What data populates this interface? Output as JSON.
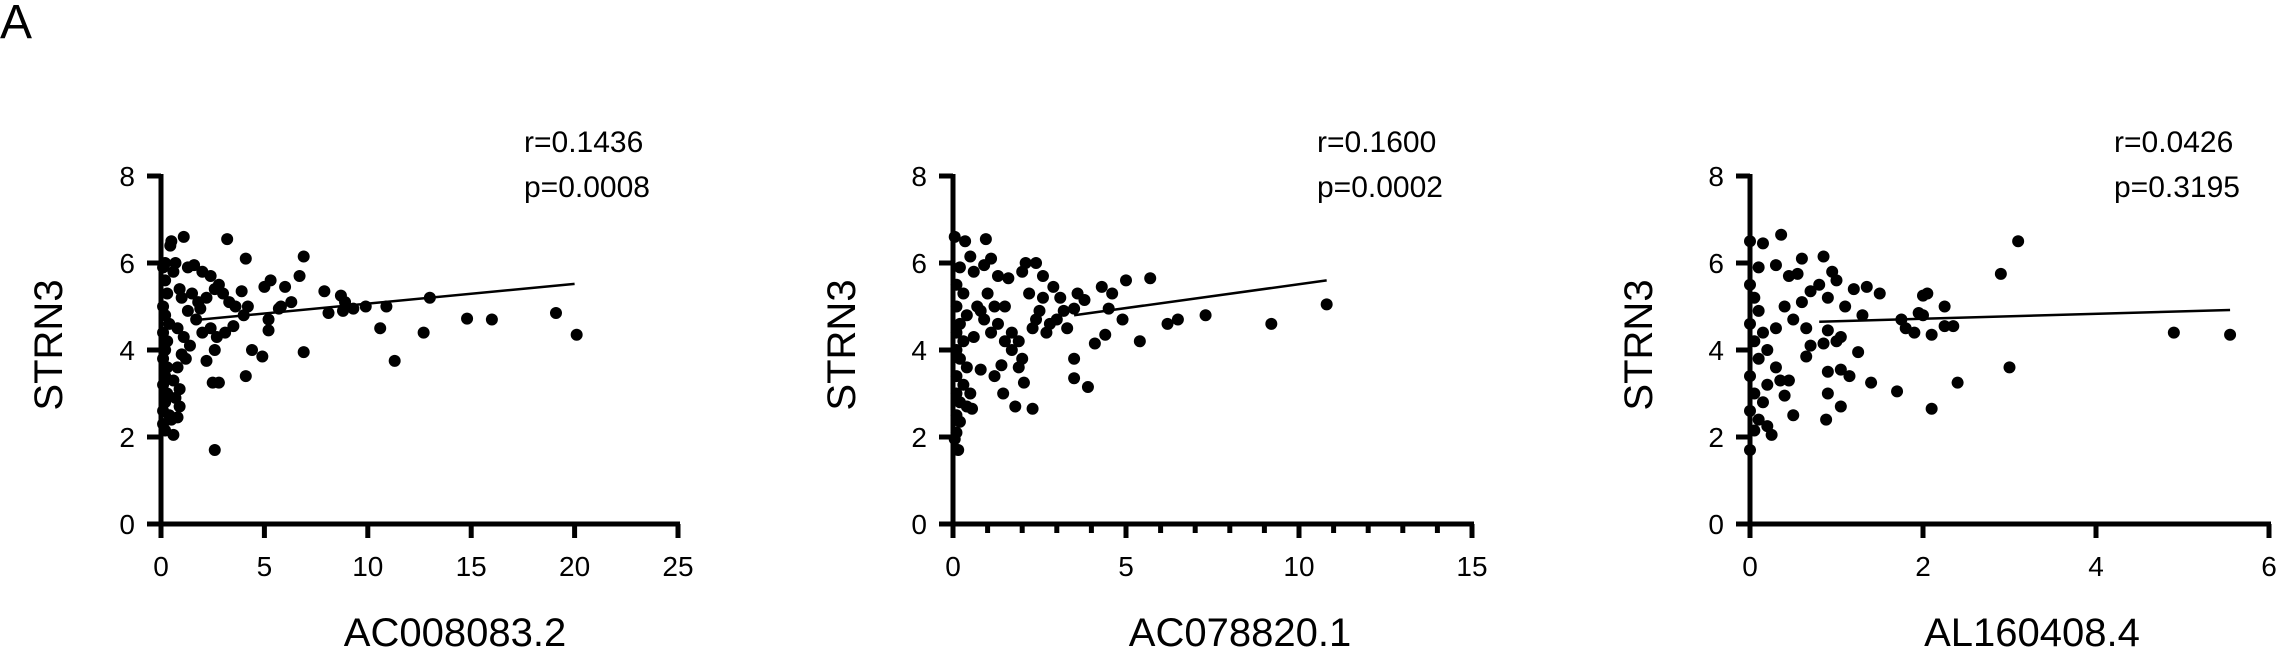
{
  "figure": {
    "panel_label": "A"
  },
  "chart_data": [
    {
      "type": "scatter",
      "title": "",
      "xlabel": "AC008083.2",
      "ylabel": "STRN3",
      "xlim": [
        0,
        25
      ],
      "ylim": [
        0,
        8
      ],
      "xticks": [
        0,
        5,
        10,
        15,
        20,
        25
      ],
      "yticks": [
        0,
        2,
        4,
        6,
        8
      ],
      "x_minor_ticks": false,
      "grid": false,
      "annotations": {
        "r": "r=0.1436",
        "p": "p=0.0008"
      },
      "regression_line": {
        "x": [
          1.5,
          20.0
        ],
        "y": [
          4.68,
          5.52
        ]
      },
      "points": [
        [
          0.1,
          5.9
        ],
        [
          0.2,
          5.6
        ],
        [
          0.3,
          5.3
        ],
        [
          0.1,
          5.0
        ],
        [
          0.2,
          4.8
        ],
        [
          0.4,
          4.6
        ],
        [
          0.1,
          4.4
        ],
        [
          0.3,
          4.2
        ],
        [
          0.2,
          4.0
        ],
        [
          0.1,
          3.8
        ],
        [
          0.3,
          3.6
        ],
        [
          0.2,
          3.4
        ],
        [
          0.1,
          3.2
        ],
        [
          0.3,
          3.0
        ],
        [
          0.2,
          2.8
        ],
        [
          0.1,
          2.6
        ],
        [
          0.4,
          2.5
        ],
        [
          0.1,
          2.3
        ],
        [
          0.2,
          2.15
        ],
        [
          0.6,
          2.05
        ],
        [
          0.5,
          2.4
        ],
        [
          0.8,
          2.45
        ],
        [
          0.9,
          2.7
        ],
        [
          0.7,
          2.9
        ],
        [
          0.6,
          3.3
        ],
        [
          0.9,
          3.1
        ],
        [
          0.8,
          3.6
        ],
        [
          1.0,
          3.9
        ],
        [
          1.2,
          3.8
        ],
        [
          1.4,
          4.1
        ],
        [
          0.5,
          6.5
        ],
        [
          0.45,
          6.4
        ],
        [
          1.1,
          6.6
        ],
        [
          0.7,
          6.0
        ],
        [
          1.3,
          5.9
        ],
        [
          1.6,
          5.95
        ],
        [
          2.0,
          5.8
        ],
        [
          2.4,
          5.7
        ],
        [
          2.8,
          5.5
        ],
        [
          0.9,
          5.4
        ],
        [
          1.5,
          5.3
        ],
        [
          1.8,
          5.1
        ],
        [
          2.2,
          5.2
        ],
        [
          2.6,
          5.4
        ],
        [
          3.0,
          5.3
        ],
        [
          3.3,
          5.1
        ],
        [
          3.6,
          5.0
        ],
        [
          3.9,
          5.35
        ],
        [
          4.2,
          5.0
        ],
        [
          4.0,
          4.8
        ],
        [
          3.5,
          4.55
        ],
        [
          3.1,
          4.4
        ],
        [
          2.7,
          4.3
        ],
        [
          2.4,
          4.5
        ],
        [
          2.0,
          4.4
        ],
        [
          1.7,
          4.7
        ],
        [
          1.3,
          4.9
        ],
        [
          1.0,
          5.2
        ],
        [
          0.8,
          4.5
        ],
        [
          1.1,
          4.3
        ],
        [
          3.2,
          6.55
        ],
        [
          4.1,
          6.1
        ],
        [
          2.2,
          3.75
        ],
        [
          2.5,
          3.25
        ],
        [
          2.8,
          3.25
        ],
        [
          2.6,
          4.0
        ],
        [
          4.4,
          4.0
        ],
        [
          4.9,
          3.85
        ],
        [
          4.1,
          3.4
        ],
        [
          2.6,
          1.7
        ],
        [
          5.0,
          5.45
        ],
        [
          5.3,
          5.6
        ],
        [
          5.2,
          4.7
        ],
        [
          5.2,
          4.45
        ],
        [
          5.7,
          4.95
        ],
        [
          5.8,
          5.0
        ],
        [
          6.0,
          5.45
        ],
        [
          6.3,
          5.1
        ],
        [
          6.7,
          5.7
        ],
        [
          6.9,
          6.15
        ],
        [
          6.9,
          3.95
        ],
        [
          7.9,
          5.35
        ],
        [
          8.1,
          4.85
        ],
        [
          8.7,
          5.25
        ],
        [
          8.8,
          4.9
        ],
        [
          8.9,
          5.1
        ],
        [
          9.3,
          4.95
        ],
        [
          9.9,
          5.0
        ],
        [
          10.6,
          4.5
        ],
        [
          10.9,
          5.0
        ],
        [
          11.3,
          3.75
        ],
        [
          12.7,
          4.4
        ],
        [
          13.0,
          5.2
        ],
        [
          14.8,
          4.72
        ],
        [
          16.0,
          4.7
        ],
        [
          19.1,
          4.85
        ],
        [
          20.1,
          4.35
        ],
        [
          0.2,
          6.0
        ],
        [
          0.6,
          5.8
        ],
        [
          1.9,
          4.95
        ]
      ]
    },
    {
      "type": "scatter",
      "title": "",
      "xlabel": "AC078820.1",
      "ylabel": "STRN3",
      "xlim": [
        0,
        15
      ],
      "ylim": [
        0,
        8
      ],
      "xticks": [
        0,
        5,
        10,
        15
      ],
      "yticks": [
        0,
        2,
        4,
        6,
        8
      ],
      "x_minor_ticks": true,
      "grid": false,
      "annotations": {
        "r": "r=0.1600",
        "p": "p=0.0002"
      },
      "regression_line": {
        "x": [
          3.5,
          10.8
        ],
        "y": [
          4.8,
          5.6
        ]
      },
      "points": [
        [
          0.05,
          6.6
        ],
        [
          0.35,
          6.5
        ],
        [
          0.95,
          6.55
        ],
        [
          0.5,
          6.15
        ],
        [
          1.1,
          6.1
        ],
        [
          0.2,
          5.9
        ],
        [
          0.6,
          5.8
        ],
        [
          0.9,
          5.95
        ],
        [
          0.1,
          5.5
        ],
        [
          0.3,
          5.3
        ],
        [
          0.1,
          5.0
        ],
        [
          0.4,
          4.8
        ],
        [
          0.2,
          4.6
        ],
        [
          0.1,
          4.4
        ],
        [
          0.3,
          4.2
        ],
        [
          0.1,
          4.0
        ],
        [
          0.2,
          3.8
        ],
        [
          0.4,
          3.6
        ],
        [
          0.1,
          3.4
        ],
        [
          0.3,
          3.2
        ],
        [
          0.1,
          3.0
        ],
        [
          0.2,
          2.8
        ],
        [
          0.4,
          2.7
        ],
        [
          0.1,
          2.5
        ],
        [
          0.2,
          2.35
        ],
        [
          0.1,
          2.1
        ],
        [
          0.05,
          1.95
        ],
        [
          0.15,
          1.7
        ],
        [
          0.55,
          2.65
        ],
        [
          0.5,
          3.0
        ],
        [
          0.8,
          3.55
        ],
        [
          1.2,
          3.4
        ],
        [
          1.4,
          3.65
        ],
        [
          1.45,
          3.0
        ],
        [
          1.8,
          2.7
        ],
        [
          2.3,
          2.65
        ],
        [
          1.9,
          3.6
        ],
        [
          2.05,
          3.25
        ],
        [
          2.0,
          3.8
        ],
        [
          1.7,
          4.0
        ],
        [
          1.3,
          4.6
        ],
        [
          1.5,
          5.0
        ],
        [
          1.3,
          5.7
        ],
        [
          1.6,
          5.65
        ],
        [
          2.0,
          5.8
        ],
        [
          2.1,
          6.0
        ],
        [
          2.4,
          6.0
        ],
        [
          2.6,
          5.7
        ],
        [
          2.9,
          5.45
        ],
        [
          3.1,
          5.2
        ],
        [
          2.2,
          5.3
        ],
        [
          2.5,
          4.9
        ],
        [
          2.8,
          4.6
        ],
        [
          3.3,
          4.5
        ],
        [
          3.6,
          5.3
        ],
        [
          3.8,
          5.15
        ],
        [
          3.5,
          4.95
        ],
        [
          3.0,
          4.7
        ],
        [
          2.7,
          4.4
        ],
        [
          2.4,
          4.7
        ],
        [
          0.7,
          5.0
        ],
        [
          0.9,
          4.7
        ],
        [
          1.1,
          4.4
        ],
        [
          0.6,
          4.3
        ],
        [
          0.8,
          4.9
        ],
        [
          1.0,
          5.3
        ],
        [
          1.2,
          5.0
        ],
        [
          1.7,
          4.4
        ],
        [
          1.9,
          4.2
        ],
        [
          2.3,
          4.5
        ],
        [
          3.5,
          3.8
        ],
        [
          3.5,
          3.35
        ],
        [
          3.9,
          3.15
        ],
        [
          4.1,
          4.15
        ],
        [
          4.4,
          4.35
        ],
        [
          4.5,
          4.95
        ],
        [
          4.3,
          5.45
        ],
        [
          4.6,
          5.3
        ],
        [
          4.9,
          4.7
        ],
        [
          5.0,
          5.6
        ],
        [
          5.4,
          4.2
        ],
        [
          5.7,
          5.65
        ],
        [
          6.2,
          4.6
        ],
        [
          6.5,
          4.7
        ],
        [
          7.3,
          4.8
        ],
        [
          9.2,
          4.6
        ],
        [
          10.8,
          5.05
        ],
        [
          2.6,
          5.2
        ],
        [
          3.2,
          4.9
        ],
        [
          1.5,
          4.2
        ]
      ]
    },
    {
      "type": "scatter",
      "title": "",
      "xlabel": "AL160408.4",
      "ylabel": "STRN3",
      "xlim": [
        0,
        6
      ],
      "ylim": [
        0,
        8
      ],
      "xticks": [
        0,
        2,
        4,
        6
      ],
      "yticks": [
        0,
        2,
        4,
        6,
        8
      ],
      "x_minor_ticks": false,
      "grid": false,
      "annotations": {
        "r": "r=0.0426",
        "p": "p=0.3195"
      },
      "regression_line": {
        "x": [
          0.8,
          5.55
        ],
        "y": [
          4.65,
          4.92
        ]
      },
      "points": [
        [
          0.0,
          6.5
        ],
        [
          0.15,
          6.45
        ],
        [
          0.36,
          6.65
        ],
        [
          0.6,
          6.1
        ],
        [
          0.85,
          6.15
        ],
        [
          0.1,
          5.9
        ],
        [
          0.3,
          5.95
        ],
        [
          0.45,
          5.7
        ],
        [
          0.55,
          5.75
        ],
        [
          0.95,
          5.8
        ],
        [
          1.0,
          5.6
        ],
        [
          0.8,
          5.5
        ],
        [
          0.7,
          5.35
        ],
        [
          1.2,
          5.4
        ],
        [
          1.35,
          5.45
        ],
        [
          1.5,
          5.3
        ],
        [
          1.1,
          5.0
        ],
        [
          0.9,
          5.2
        ],
        [
          0.6,
          5.1
        ],
        [
          0.4,
          5.0
        ],
        [
          0.0,
          5.5
        ],
        [
          0.05,
          5.2
        ],
        [
          0.1,
          4.9
        ],
        [
          0.0,
          4.6
        ],
        [
          0.15,
          4.4
        ],
        [
          0.05,
          4.2
        ],
        [
          0.2,
          4.0
        ],
        [
          0.1,
          3.8
        ],
        [
          0.3,
          3.6
        ],
        [
          0.0,
          3.4
        ],
        [
          0.2,
          3.2
        ],
        [
          0.05,
          3.0
        ],
        [
          0.15,
          2.8
        ],
        [
          0.0,
          2.6
        ],
        [
          0.1,
          2.4
        ],
        [
          0.2,
          2.25
        ],
        [
          0.05,
          2.15
        ],
        [
          0.25,
          2.05
        ],
        [
          0.0,
          1.7
        ],
        [
          0.5,
          2.5
        ],
        [
          0.88,
          2.4
        ],
        [
          0.4,
          2.95
        ],
        [
          0.35,
          3.3
        ],
        [
          0.45,
          3.3
        ],
        [
          0.9,
          3.0
        ],
        [
          1.05,
          2.7
        ],
        [
          0.9,
          3.5
        ],
        [
          1.05,
          3.55
        ],
        [
          1.15,
          3.4
        ],
        [
          1.4,
          3.25
        ],
        [
          0.65,
          3.85
        ],
        [
          0.7,
          4.1
        ],
        [
          0.85,
          4.15
        ],
        [
          1.0,
          4.2
        ],
        [
          1.05,
          4.3
        ],
        [
          1.25,
          3.95
        ],
        [
          0.9,
          4.45
        ],
        [
          0.65,
          4.5
        ],
        [
          0.5,
          4.7
        ],
        [
          0.3,
          4.5
        ],
        [
          1.7,
          3.05
        ],
        [
          1.75,
          4.7
        ],
        [
          1.8,
          4.5
        ],
        [
          1.9,
          4.4
        ],
        [
          1.95,
          4.85
        ],
        [
          2.0,
          4.8
        ],
        [
          2.0,
          5.25
        ],
        [
          2.05,
          5.3
        ],
        [
          2.1,
          4.35
        ],
        [
          2.1,
          2.65
        ],
        [
          2.25,
          5.0
        ],
        [
          2.25,
          4.55
        ],
        [
          2.35,
          4.55
        ],
        [
          2.4,
          3.25
        ],
        [
          2.9,
          5.75
        ],
        [
          3.0,
          3.6
        ],
        [
          3.1,
          6.5
        ],
        [
          4.9,
          4.4
        ],
        [
          5.55,
          4.35
        ],
        [
          1.3,
          4.8
        ]
      ]
    }
  ]
}
